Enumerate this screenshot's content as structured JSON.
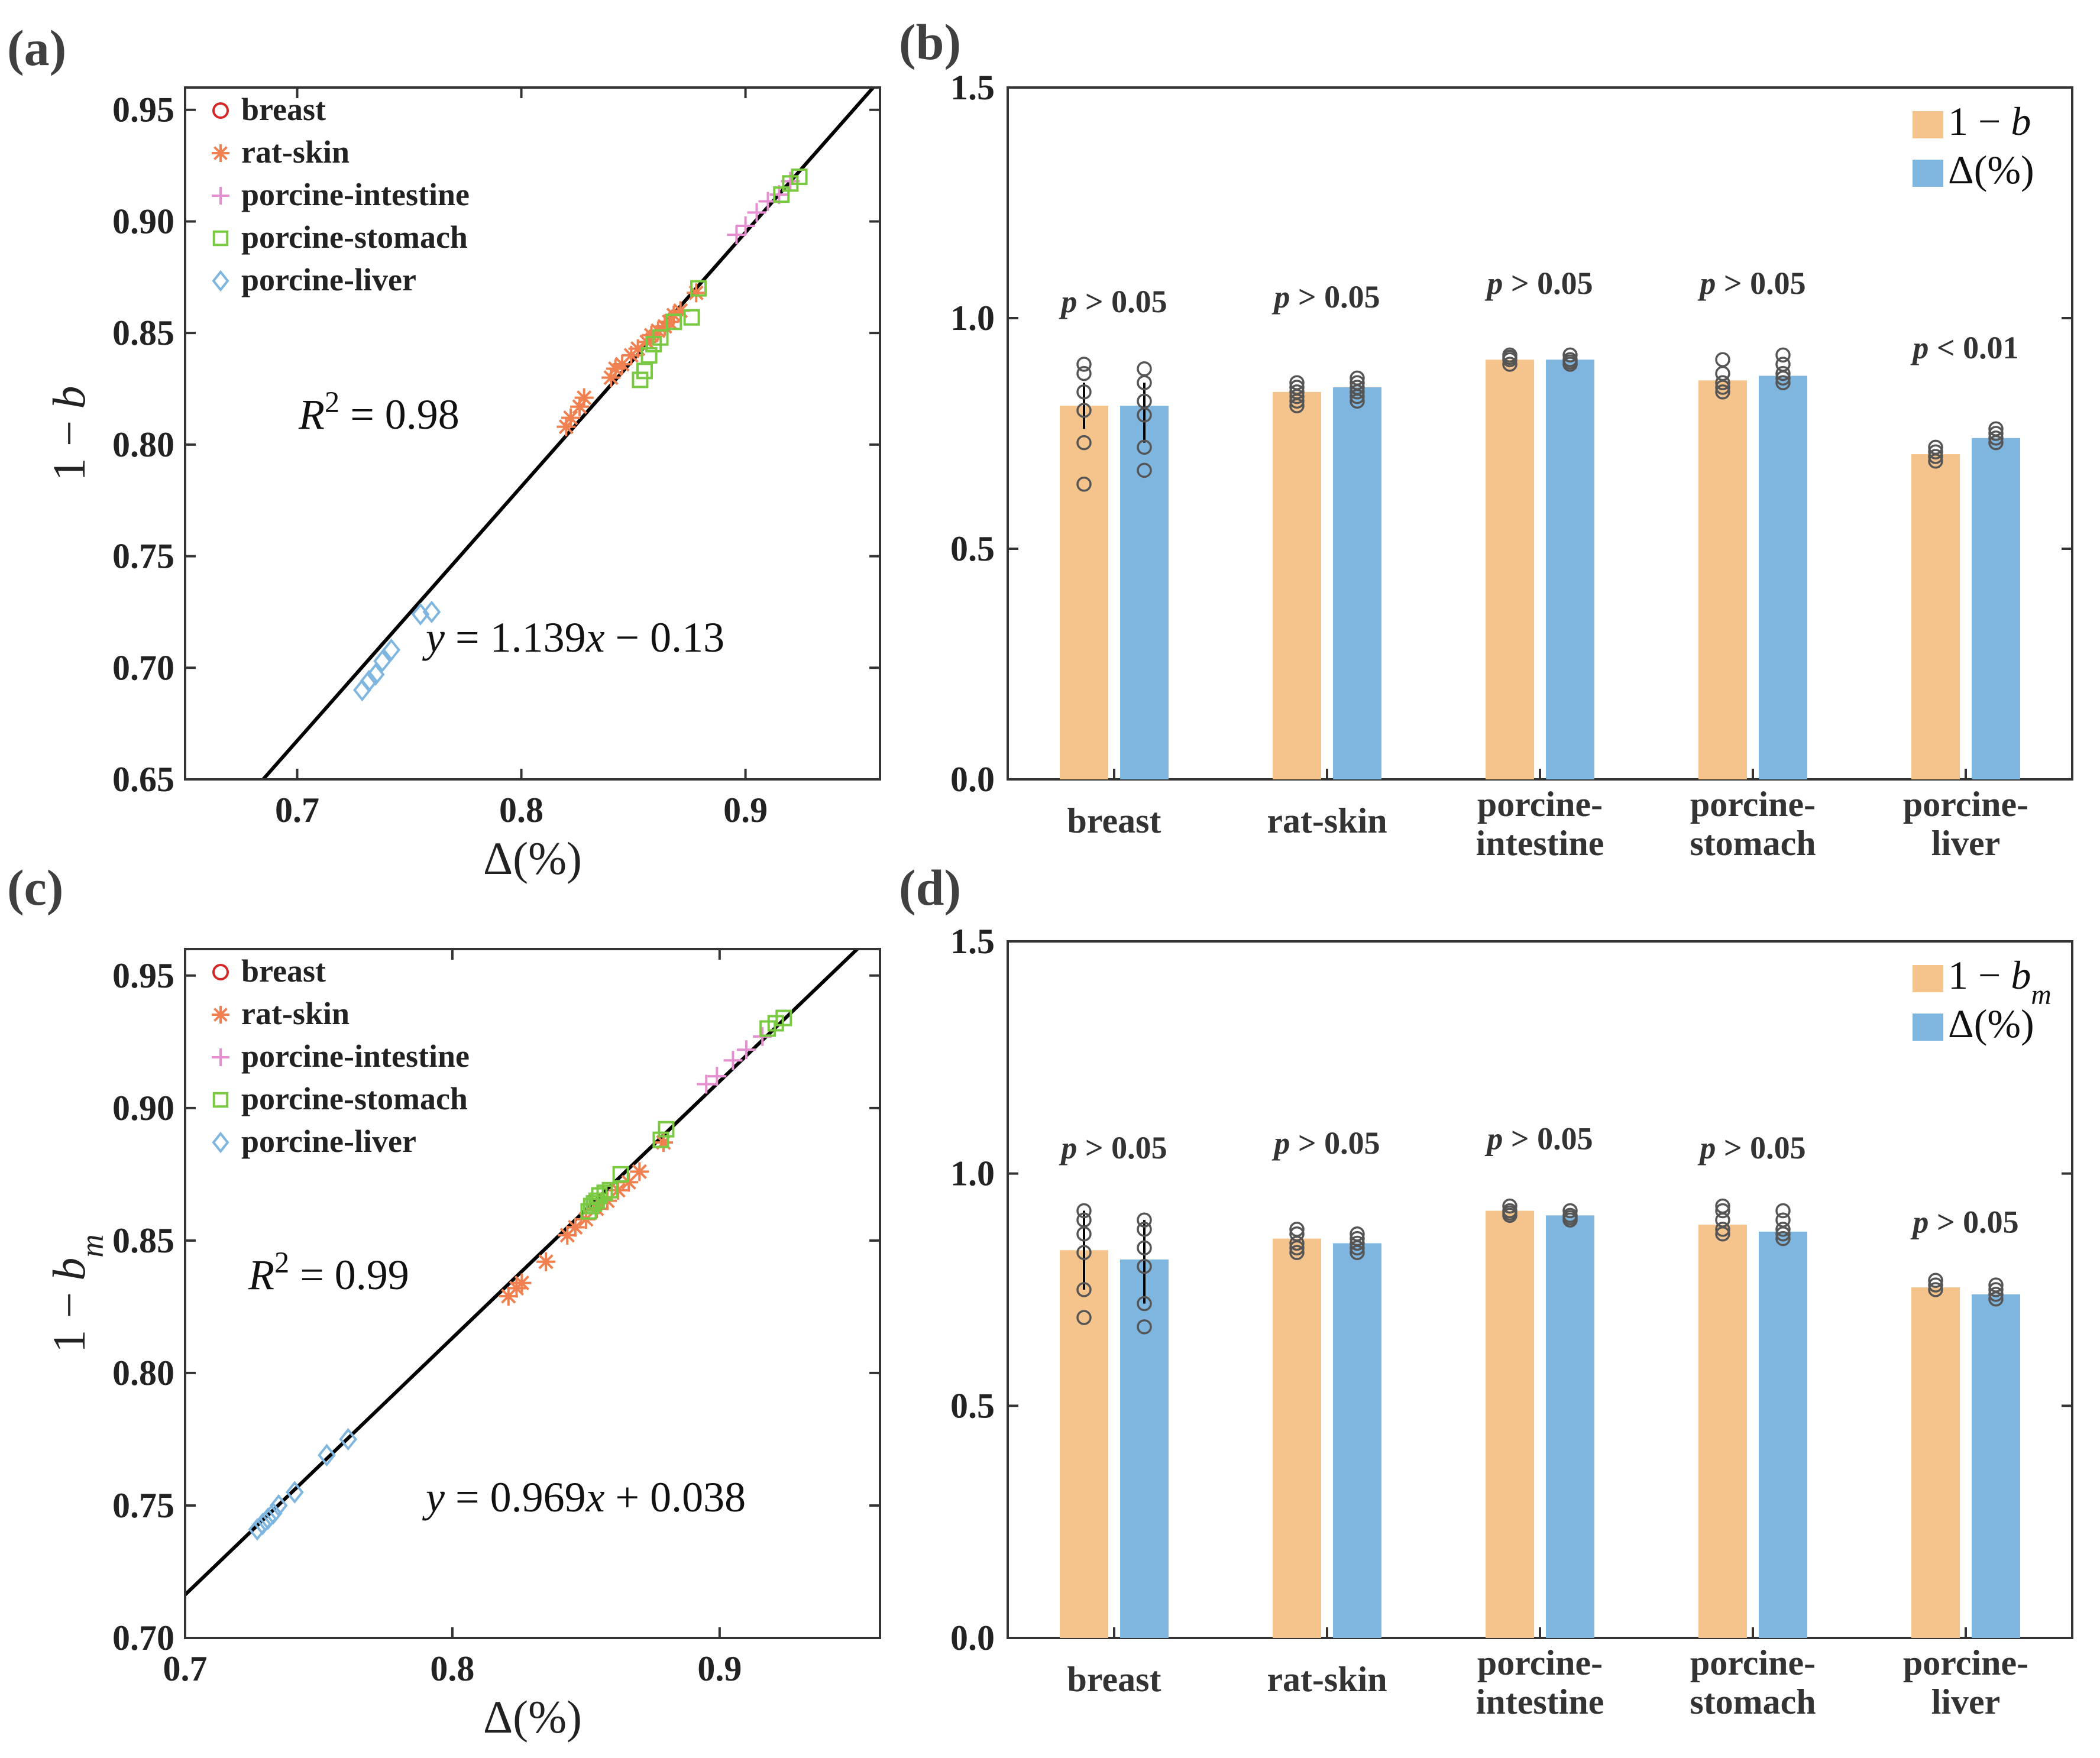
{
  "panels": {
    "a": "(a)",
    "b": "(b)",
    "c": "(c)",
    "d": "(d)"
  },
  "colors": {
    "breast": "#d62728",
    "rat_skin": "#f08050",
    "porcine_intestine": "#e58fd0",
    "porcine_stomach": "#7ac943",
    "porcine_liver": "#7fb6e0",
    "bar_orange": "#f5c48c",
    "bar_blue": "#7fb6e0",
    "fit_line": "#000000"
  },
  "chart_data": [
    {
      "id": "a",
      "type": "scatter",
      "xlabel": "Δ(%)",
      "ylabel": "1 − b",
      "xlim": [
        0.65,
        0.96
      ],
      "ylim": [
        0.65,
        0.96
      ],
      "xticks": [
        "0.7",
        "0.8",
        "0.9"
      ],
      "yticks": [
        "0.65",
        "0.70",
        "0.75",
        "0.80",
        "0.85",
        "0.90",
        "0.95"
      ],
      "legend_position": "top-left",
      "legend": [
        {
          "label": "breast",
          "marker": "circle",
          "color": "#d62728"
        },
        {
          "label": "rat-skin",
          "marker": "asterisk",
          "color": "#f08050"
        },
        {
          "label": "porcine-intestine",
          "marker": "plus",
          "color": "#e58fd0"
        },
        {
          "label": "porcine-stomach",
          "marker": "square",
          "color": "#7ac943"
        },
        {
          "label": "porcine-liver",
          "marker": "diamond",
          "color": "#7fb6e0"
        }
      ],
      "fit": {
        "slope": 1.139,
        "intercept": -0.13
      },
      "r2_text": "R² = 0.98",
      "eq_text": "y = 1.139x − 0.13",
      "series": [
        {
          "name": "rat-skin",
          "marker": "asterisk",
          "color": "#f08050",
          "x": [
            0.82,
            0.822,
            0.826,
            0.828,
            0.84,
            0.842,
            0.845,
            0.849,
            0.852,
            0.856,
            0.858,
            0.861,
            0.864,
            0.866,
            0.868,
            0.871,
            0.878
          ],
          "y": [
            0.808,
            0.812,
            0.817,
            0.821,
            0.83,
            0.834,
            0.836,
            0.84,
            0.843,
            0.846,
            0.849,
            0.851,
            0.853,
            0.855,
            0.858,
            0.86,
            0.868
          ]
        },
        {
          "name": "porcine-intestine",
          "marker": "plus",
          "color": "#e58fd0",
          "x": [
            0.896,
            0.9,
            0.905,
            0.91,
            0.915,
            0.92
          ],
          "y": [
            0.894,
            0.898,
            0.904,
            0.909,
            0.912,
            0.918
          ]
        },
        {
          "name": "porcine-stomach",
          "marker": "square",
          "color": "#7ac943",
          "x": [
            0.853,
            0.855,
            0.857,
            0.859,
            0.862,
            0.868,
            0.876,
            0.879,
            0.916,
            0.92,
            0.924
          ],
          "y": [
            0.829,
            0.833,
            0.84,
            0.845,
            0.848,
            0.855,
            0.857,
            0.87,
            0.912,
            0.917,
            0.92
          ]
        },
        {
          "name": "porcine-liver",
          "marker": "diamond",
          "color": "#7fb6e0",
          "x": [
            0.729,
            0.732,
            0.735,
            0.738,
            0.742,
            0.755,
            0.76
          ],
          "y": [
            0.69,
            0.694,
            0.697,
            0.703,
            0.708,
            0.724,
            0.725
          ]
        }
      ]
    },
    {
      "id": "b",
      "type": "bar",
      "ylim": [
        0,
        1.5
      ],
      "yticks": [
        "0.0",
        "0.5",
        "1.0",
        "1.5"
      ],
      "categories": [
        [
          "breast"
        ],
        [
          "rat-skin"
        ],
        [
          "porcine-",
          "intestine"
        ],
        [
          "porcine-",
          "stomach"
        ],
        [
          "porcine-",
          "liver"
        ]
      ],
      "legend_position": "top-right",
      "legend": [
        "1 − b",
        "Δ(%)"
      ],
      "series": [
        {
          "name": "1 − b",
          "values": [
            0.81,
            0.84,
            0.91,
            0.865,
            0.705
          ]
        },
        {
          "name": "Δ(%)",
          "values": [
            0.81,
            0.85,
            0.91,
            0.875,
            0.74
          ]
        }
      ],
      "errors": [
        [
          0.76,
          0.86
        ],
        null,
        null,
        null,
        null
      ],
      "errors2": [
        [
          0.73,
          0.86
        ],
        null,
        null,
        null,
        null
      ],
      "points": [
        [
          [
            0.64,
            0.73,
            0.8,
            0.84,
            0.88,
            0.9
          ],
          [
            0.67,
            0.72,
            0.79,
            0.82,
            0.86,
            0.89
          ]
        ],
        [
          [
            0.81,
            0.82,
            0.83,
            0.84,
            0.85,
            0.86
          ],
          [
            0.82,
            0.83,
            0.84,
            0.85,
            0.86,
            0.87
          ]
        ],
        [
          [
            0.9,
            0.91,
            0.915,
            0.92
          ],
          [
            0.9,
            0.905,
            0.91,
            0.92
          ]
        ],
        [
          [
            0.84,
            0.85,
            0.86,
            0.88,
            0.91
          ],
          [
            0.86,
            0.87,
            0.88,
            0.9,
            0.92
          ]
        ],
        [
          [
            0.69,
            0.7,
            0.71,
            0.72
          ],
          [
            0.73,
            0.74,
            0.75,
            0.76
          ]
        ]
      ],
      "pvalues": [
        "p > 0.05",
        "p > 0.05",
        "p > 0.05",
        "p > 0.05",
        "p < 0.01"
      ],
      "pvalue_y": [
        1.0,
        1.01,
        1.04,
        1.04,
        0.9
      ]
    },
    {
      "id": "c",
      "type": "scatter",
      "xlabel": "Δ(%)",
      "ylabel": "1 − b_m",
      "xlim": [
        0.7,
        0.96
      ],
      "ylim": [
        0.7,
        0.96
      ],
      "xticks": [
        "0.7",
        "0.8",
        "0.9"
      ],
      "yticks": [
        "0.70",
        "0.75",
        "0.80",
        "0.85",
        "0.90",
        "0.95"
      ],
      "legend_position": "top-left",
      "legend": [
        {
          "label": "breast",
          "marker": "circle",
          "color": "#d62728"
        },
        {
          "label": "rat-skin",
          "marker": "asterisk",
          "color": "#f08050"
        },
        {
          "label": "porcine-intestine",
          "marker": "plus",
          "color": "#e58fd0"
        },
        {
          "label": "porcine-stomach",
          "marker": "square",
          "color": "#7ac943"
        },
        {
          "label": "porcine-liver",
          "marker": "diamond",
          "color": "#7fb6e0"
        }
      ],
      "fit": {
        "slope": 0.969,
        "intercept": 0.038
      },
      "r2_text": "R² = 0.99",
      "eq_text": "y = 0.969x + 0.038",
      "series": [
        {
          "name": "rat-skin",
          "marker": "asterisk",
          "color": "#f08050",
          "x": [
            0.821,
            0.824,
            0.826,
            0.835,
            0.843,
            0.846,
            0.85,
            0.854,
            0.858,
            0.862,
            0.866,
            0.87,
            0.879
          ],
          "y": [
            0.829,
            0.832,
            0.834,
            0.842,
            0.852,
            0.855,
            0.858,
            0.862,
            0.865,
            0.869,
            0.872,
            0.876,
            0.887
          ]
        },
        {
          "name": "porcine-intestine",
          "marker": "plus",
          "color": "#e58fd0",
          "x": [
            0.895,
            0.899,
            0.905,
            0.91,
            0.916
          ],
          "y": [
            0.909,
            0.912,
            0.918,
            0.922,
            0.927
          ]
        },
        {
          "name": "porcine-stomach",
          "marker": "square",
          "color": "#7ac943",
          "x": [
            0.851,
            0.852,
            0.853,
            0.854,
            0.855,
            0.857,
            0.859,
            0.863,
            0.878,
            0.88,
            0.918,
            0.921,
            0.924
          ],
          "y": [
            0.861,
            0.863,
            0.864,
            0.865,
            0.867,
            0.868,
            0.869,
            0.875,
            0.888,
            0.892,
            0.93,
            0.932,
            0.934
          ]
        },
        {
          "name": "porcine-liver",
          "marker": "diamond",
          "color": "#7fb6e0",
          "x": [
            0.727,
            0.729,
            0.731,
            0.733,
            0.735,
            0.741,
            0.753,
            0.761
          ],
          "y": [
            0.741,
            0.743,
            0.745,
            0.747,
            0.75,
            0.755,
            0.769,
            0.775
          ]
        }
      ]
    },
    {
      "id": "d",
      "type": "bar",
      "ylim": [
        0,
        1.5
      ],
      "yticks": [
        "0.0",
        "0.5",
        "1.0",
        "1.5"
      ],
      "categories": [
        [
          "breast"
        ],
        [
          "rat-skin"
        ],
        [
          "porcine-",
          "intestine"
        ],
        [
          "porcine-",
          "stomach"
        ],
        [
          "porcine-",
          "liver"
        ]
      ],
      "legend_position": "top-right",
      "legend": [
        "1 − b_m",
        "Δ(%)"
      ],
      "series": [
        {
          "name": "1 − b_m",
          "values": [
            0.835,
            0.86,
            0.92,
            0.89,
            0.755
          ]
        },
        {
          "name": "Δ(%)",
          "values": [
            0.815,
            0.85,
            0.91,
            0.875,
            0.74
          ]
        }
      ],
      "errors": [
        [
          0.75,
          0.92
        ],
        null,
        null,
        null,
        null
      ],
      "errors2": [
        [
          0.72,
          0.9
        ],
        null,
        null,
        null,
        null
      ],
      "points": [
        [
          [
            0.69,
            0.75,
            0.83,
            0.87,
            0.9,
            0.92
          ],
          [
            0.67,
            0.72,
            0.8,
            0.84,
            0.88,
            0.9
          ]
        ],
        [
          [
            0.83,
            0.84,
            0.85,
            0.87,
            0.88
          ],
          [
            0.83,
            0.84,
            0.85,
            0.86,
            0.87
          ]
        ],
        [
          [
            0.91,
            0.915,
            0.92,
            0.93
          ],
          [
            0.9,
            0.905,
            0.91,
            0.92
          ]
        ],
        [
          [
            0.87,
            0.88,
            0.9,
            0.92,
            0.93
          ],
          [
            0.86,
            0.87,
            0.88,
            0.9,
            0.92
          ]
        ],
        [
          [
            0.75,
            0.76,
            0.77
          ],
          [
            0.73,
            0.74,
            0.75,
            0.76
          ]
        ]
      ],
      "pvalues": [
        "p > 0.05",
        "p > 0.05",
        "p > 0.05",
        "p > 0.05",
        "p > 0.05"
      ],
      "pvalue_y": [
        1.02,
        1.03,
        1.04,
        1.02,
        0.86
      ]
    }
  ]
}
